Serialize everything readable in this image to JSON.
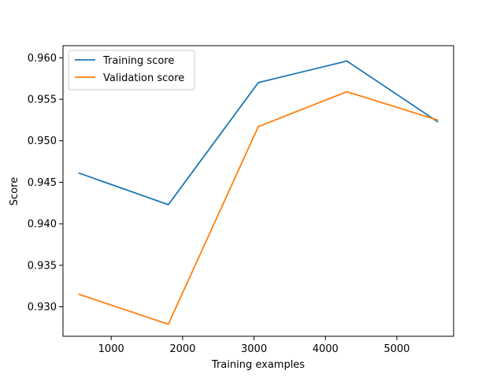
{
  "chart_data": {
    "type": "line",
    "x": [
      550,
      1800,
      3060,
      4300,
      5570
    ],
    "series": [
      {
        "name": "Training score",
        "color": "#1f77b4",
        "values": [
          0.9461,
          0.9423,
          0.957,
          0.9596,
          0.9523
        ]
      },
      {
        "name": "Validation score",
        "color": "#ff7f0e",
        "values": [
          0.9315,
          0.9279,
          0.9517,
          0.9559,
          0.9525
        ]
      }
    ],
    "xlabel": "Training examples",
    "ylabel": "Score",
    "xlim": [
      325,
      5795
    ],
    "ylim": [
      0.92645,
      0.96145
    ],
    "xticks": [
      1000,
      2000,
      3000,
      4000,
      5000
    ],
    "xtick_labels": [
      "1000",
      "2000",
      "3000",
      "4000",
      "5000"
    ],
    "yticks": [
      0.93,
      0.935,
      0.94,
      0.945,
      0.95,
      0.955,
      0.96
    ],
    "ytick_labels": [
      "0.930",
      "0.935",
      "0.940",
      "0.945",
      "0.950",
      "0.955",
      "0.960"
    ],
    "grid": false,
    "legend_position": "top-left"
  }
}
